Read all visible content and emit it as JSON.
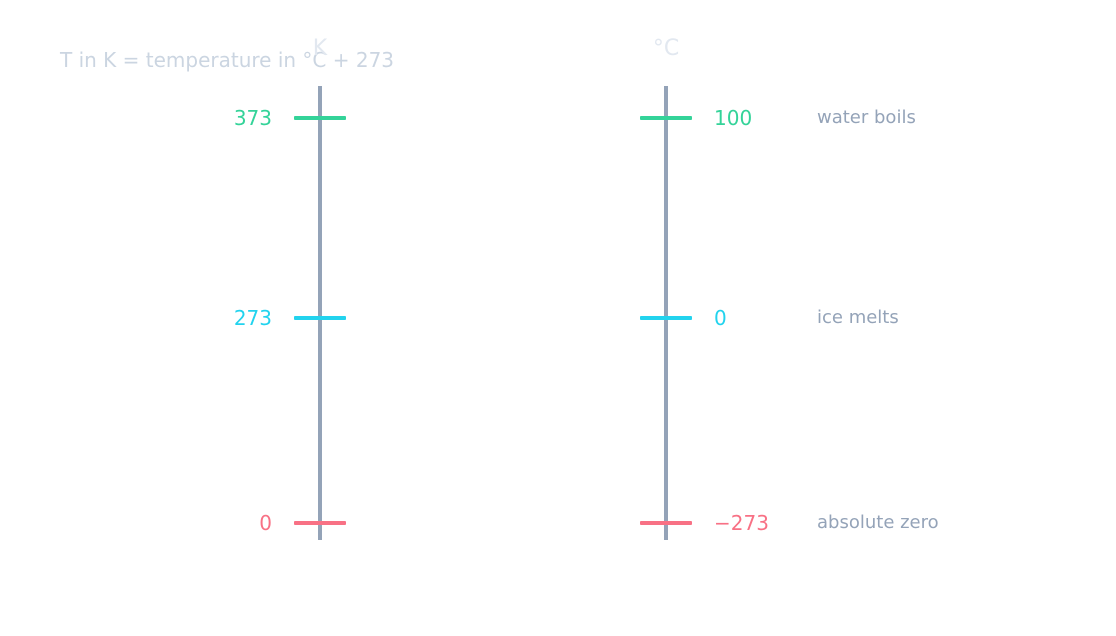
{
  "formula": "T in K = temperature in °C + 273",
  "scales": {
    "kelvin": {
      "label": "K"
    },
    "celsius": {
      "label": "°C"
    }
  },
  "points": [
    {
      "kelvin": "373",
      "celsius": "100",
      "description": "water boils",
      "color": "#34d399"
    },
    {
      "kelvin": "273",
      "celsius": "0",
      "description": "ice melts",
      "color": "#22d3ee"
    },
    {
      "kelvin": "0",
      "celsius": "−273",
      "description": "absolute zero",
      "color": "#f87185"
    }
  ],
  "colors": {
    "axis": "#94a3b8",
    "formula": "#cbd5e1",
    "unit_label": "#e2e8f0",
    "description": "#94a3b8"
  }
}
